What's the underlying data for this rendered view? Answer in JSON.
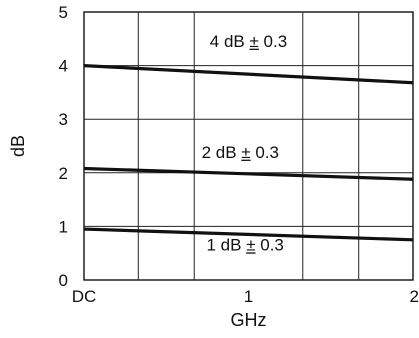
{
  "chart_data": {
    "type": "line",
    "title": "",
    "xlabel": "GHz",
    "ylabel": "dB",
    "x_ticks": [
      "DC",
      "1",
      "2"
    ],
    "y_ticks": [
      "0",
      "1",
      "2",
      "3",
      "4",
      "5"
    ],
    "xlim": [
      0,
      2
    ],
    "ylim": [
      0,
      5
    ],
    "grid": true,
    "series": [
      {
        "x": [
          0,
          2
        ],
        "y": [
          4.0,
          3.68
        ],
        "color": "#111111"
      },
      {
        "x": [
          0,
          2
        ],
        "y": [
          2.08,
          1.88
        ],
        "color": "#111111"
      },
      {
        "x": [
          0,
          2
        ],
        "y": [
          0.95,
          0.75
        ],
        "color": "#111111"
      }
    ],
    "annotations": [
      {
        "text": "4 dB ± 0.3",
        "x": 1.0,
        "y": 4.35,
        "emphasis_plus_minus": true
      },
      {
        "text": "2 dB ± 0.3",
        "x": 0.95,
        "y": 2.28,
        "emphasis_plus_minus": true
      },
      {
        "text": "1 dB ± 0.3",
        "x": 0.98,
        "y": 0.55,
        "emphasis_plus_minus": true
      }
    ],
    "vertical_gridlines": [
      0.33,
      0.67,
      1.33,
      1.67
    ]
  }
}
